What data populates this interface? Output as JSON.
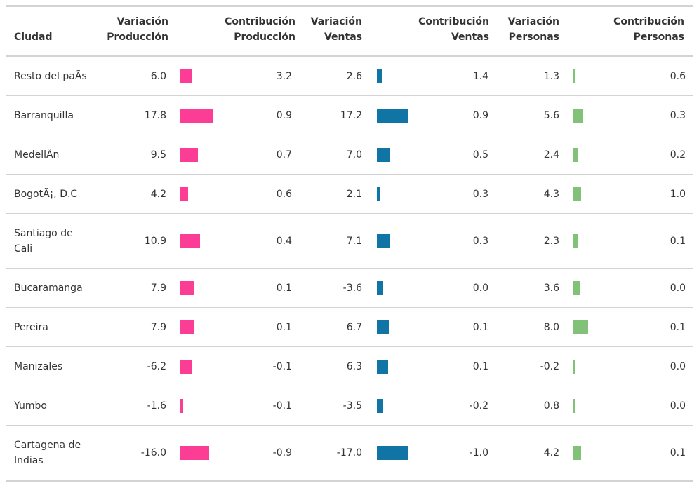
{
  "colors": {
    "produccion_bar": "#fc3d95",
    "ventas_bar": "#1075a4",
    "personas_bar": "#82c278"
  },
  "headers": {
    "ciudad": [
      "",
      "Ciudad"
    ],
    "var_prod": [
      "Variación",
      "Producción"
    ],
    "contrib_prod": [
      "Contribución",
      "Producción"
    ],
    "var_ventas": [
      "Variación",
      "Ventas"
    ],
    "contrib_ventas": [
      "Contribución",
      "Ventas"
    ],
    "var_pers": [
      "Variación",
      "Personas"
    ],
    "contrib_pers": [
      "Contribución",
      "Personas"
    ]
  },
  "rows": [
    {
      "ciudad": "Resto del paÃs",
      "var_prod": "6.0",
      "contrib_prod": "3.2",
      "var_ventas": "2.6",
      "contrib_ventas": "1.4",
      "var_pers": "1.3",
      "contrib_pers": "0.6"
    },
    {
      "ciudad": "Barranquilla",
      "var_prod": "17.8",
      "contrib_prod": "0.9",
      "var_ventas": "17.2",
      "contrib_ventas": "0.9",
      "var_pers": "5.6",
      "contrib_pers": "0.3"
    },
    {
      "ciudad": "MedellÃn",
      "var_prod": "9.5",
      "contrib_prod": "0.7",
      "var_ventas": "7.0",
      "contrib_ventas": "0.5",
      "var_pers": "2.4",
      "contrib_pers": "0.2"
    },
    {
      "ciudad": "BogotÃ¡, D.C",
      "var_prod": "4.2",
      "contrib_prod": "0.6",
      "var_ventas": "2.1",
      "contrib_ventas": "0.3",
      "var_pers": "4.3",
      "contrib_pers": "1.0"
    },
    {
      "ciudad": "Santiago de Cali",
      "var_prod": "10.9",
      "contrib_prod": "0.4",
      "var_ventas": "7.1",
      "contrib_ventas": "0.3",
      "var_pers": "2.3",
      "contrib_pers": "0.1"
    },
    {
      "ciudad": "Bucaramanga",
      "var_prod": "7.9",
      "contrib_prod": "0.1",
      "var_ventas": "-3.6",
      "contrib_ventas": "0.0",
      "var_pers": "3.6",
      "contrib_pers": "0.0"
    },
    {
      "ciudad": "Pereira",
      "var_prod": "7.9",
      "contrib_prod": "0.1",
      "var_ventas": "6.7",
      "contrib_ventas": "0.1",
      "var_pers": "8.0",
      "contrib_pers": "0.1"
    },
    {
      "ciudad": "Manizales",
      "var_prod": "-6.2",
      "contrib_prod": "-0.1",
      "var_ventas": "6.3",
      "contrib_ventas": "0.1",
      "var_pers": "-0.2",
      "contrib_pers": "0.0"
    },
    {
      "ciudad": "Yumbo",
      "var_prod": "-1.6",
      "contrib_prod": "-0.1",
      "var_ventas": "-3.5",
      "contrib_ventas": "-0.2",
      "var_pers": "0.8",
      "contrib_pers": "0.0"
    },
    {
      "ciudad": "Cartagena de Indias",
      "var_prod": "-16.0",
      "contrib_prod": "-0.9",
      "var_ventas": "-17.0",
      "contrib_ventas": "-1.0",
      "var_pers": "4.2",
      "contrib_pers": "0.1"
    }
  ]
}
